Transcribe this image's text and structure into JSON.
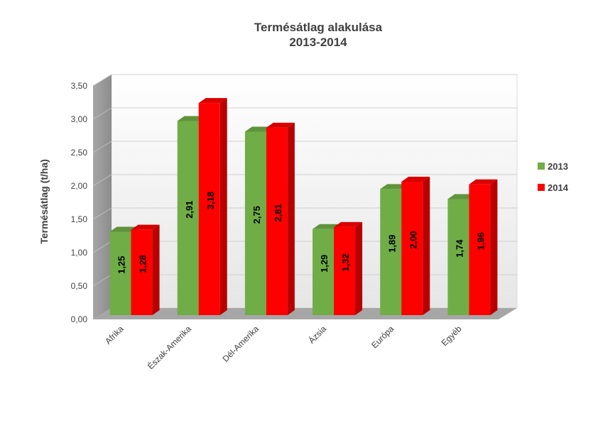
{
  "chart_data": {
    "type": "bar",
    "title": "Termésátlag alakulása",
    "subtitle": "2013-2014",
    "xlabel": "",
    "ylabel": "Termésátlag (t/ha)",
    "ylim": [
      0,
      3.5
    ],
    "yticks": [
      "0,00",
      "0,50",
      "1,00",
      "1,50",
      "2,00",
      "2,50",
      "3,00",
      "3,50"
    ],
    "ytick_values": [
      0,
      0.5,
      1,
      1.5,
      2,
      2.5,
      3,
      3.5
    ],
    "categories": [
      "Afrika",
      "Észak-Amerika",
      "Dél-Amerika",
      "Ázsia",
      "Európa",
      "Egyéb"
    ],
    "series": [
      {
        "name": "2013",
        "values": [
          1.25,
          2.91,
          2.75,
          1.29,
          1.89,
          1.74
        ],
        "labels": [
          "1,25",
          "2,91",
          "2,75",
          "1,29",
          "1,89",
          "1,74"
        ],
        "color": "#70ad47"
      },
      {
        "name": "2014",
        "values": [
          1.28,
          3.18,
          2.81,
          1.32,
          2.0,
          1.96
        ],
        "labels": [
          "1,28",
          "3,18",
          "2,81",
          "1,32",
          "2,00",
          "1,96"
        ],
        "color": "#ff0000"
      }
    ],
    "legend_position": "right",
    "grid": true,
    "style": "3d-clustered-column"
  }
}
